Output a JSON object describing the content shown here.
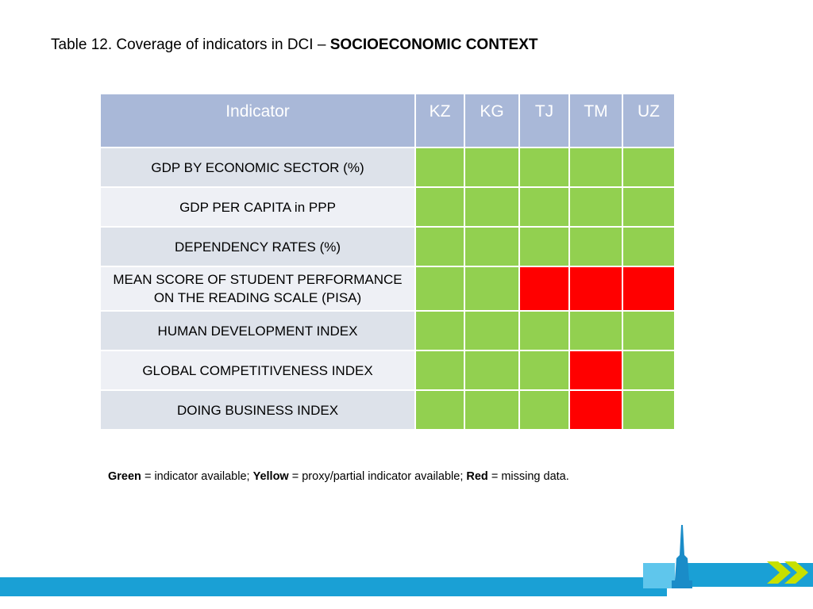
{
  "title": {
    "prefix": "Table 12. Coverage of indicators in DCI – ",
    "emphasis": "SOCIOECONOMIC CONTEXT"
  },
  "table": {
    "header": {
      "indicator": "Indicator",
      "countries": [
        "KZ",
        "KG",
        "TJ",
        "TM",
        "UZ"
      ]
    },
    "rows": [
      {
        "indicator": "GDP BY ECONOMIC SECTOR (%)",
        "status": [
          "green",
          "green",
          "green",
          "green",
          "green"
        ]
      },
      {
        "indicator": "GDP PER CAPITA  in PPP",
        "status": [
          "green",
          "green",
          "green",
          "green",
          "green"
        ]
      },
      {
        "indicator": "DEPENDENCY RATES (%)",
        "status": [
          "green",
          "green",
          "green",
          "green",
          "green"
        ]
      },
      {
        "indicator": "MEAN SCORE OF STUDENT PERFORMANCE  ON THE READING SCALE (PISA)",
        "status": [
          "green",
          "green",
          "red",
          "red",
          "red"
        ]
      },
      {
        "indicator": "HUMAN DEVELOPMENT INDEX",
        "status": [
          "green",
          "green",
          "green",
          "green",
          "green"
        ]
      },
      {
        "indicator": "GLOBAL COMPETITIVENESS INDEX",
        "status": [
          "green",
          "green",
          "green",
          "red",
          "green"
        ]
      },
      {
        "indicator": "DOING BUSINESS INDEX",
        "status": [
          "green",
          "green",
          "green",
          "red",
          "green"
        ]
      }
    ],
    "colors": {
      "green": "#92d050",
      "red": "#ff0000",
      "yellow": "#ffff00",
      "header": "#a9b8d8"
    }
  },
  "legend": {
    "green_label": "Green",
    "green_text": " = indicator available; ",
    "yellow_label": "Yellow",
    "yellow_text": " = proxy/partial indicator available; ",
    "red_label": "Red",
    "red_text": " = missing data."
  },
  "footer": {
    "logo_icon": "tower-icon",
    "chevron_icon": "double-chevron-right-icon"
  }
}
